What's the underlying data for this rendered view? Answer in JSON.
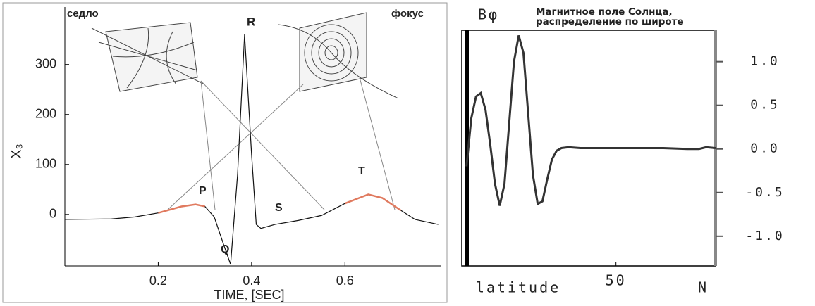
{
  "chart_data": [
    {
      "type": "line",
      "xlabel": "TIME, [SEC]",
      "ylabel": "X₃",
      "annotations": [
        "седло",
        "фокус",
        "R",
        "P",
        "Q",
        "S",
        "T"
      ],
      "x": [
        0,
        0.1,
        0.15,
        0.2,
        0.25,
        0.28,
        0.3,
        0.32,
        0.34,
        0.355,
        0.37,
        0.385,
        0.4,
        0.41,
        0.42,
        0.45,
        0.5,
        0.55,
        0.6,
        0.65,
        0.68,
        0.72,
        0.75,
        0.8
      ],
      "series": [
        {
          "color": "#111111",
          "values": [
            -10,
            -9,
            -5,
            3,
            16,
            20,
            16,
            -5,
            -60,
            -100,
            80,
            360,
            120,
            -20,
            -28,
            -20,
            -12,
            -2,
            22,
            40,
            33,
            8,
            -10,
            -20
          ]
        },
        {
          "color": "#e07a5f",
          "values": [
            null,
            null,
            null,
            3,
            16,
            20,
            16,
            null,
            null,
            null,
            null,
            null,
            null,
            null,
            null,
            null,
            null,
            null,
            22,
            40,
            33,
            8,
            null,
            null
          ]
        }
      ],
      "xlim": [
        0,
        0.805
      ],
      "ylim": [
        -103,
        415
      ],
      "xticks": [
        0.2,
        0.4,
        0.6
      ],
      "yticks": [
        0,
        100,
        200,
        300
      ]
    },
    {
      "type": "line",
      "title": "Магнитное поле Солнца, распределение по широте",
      "ylabel": "Bφ",
      "xlabel": "latitude",
      "annotations": [
        "N"
      ],
      "x": [
        -13,
        -11,
        -9,
        -7,
        -5,
        -3,
        -1,
        1,
        3,
        5,
        7,
        9,
        11,
        13,
        15,
        17,
        19,
        21,
        23,
        25,
        27,
        30,
        35,
        40,
        50,
        60,
        70,
        80,
        85,
        88,
        92
      ],
      "series": [
        {
          "color": "#333333",
          "values": [
            -0.2,
            0.35,
            0.6,
            0.64,
            0.45,
            0.05,
            -0.4,
            -0.65,
            -0.4,
            0.3,
            1.0,
            1.3,
            1.1,
            0.4,
            -0.3,
            -0.63,
            -0.6,
            -0.35,
            -0.12,
            -0.02,
            0.01,
            0.02,
            0.01,
            0.01,
            0.01,
            0.01,
            0.01,
            0,
            0,
            0.02,
            0.01
          ]
        }
      ],
      "xlim": [
        -15,
        92
      ],
      "ylim": [
        -1.34,
        1.36
      ],
      "xticks": [
        50
      ],
      "yticks": [
        {
          "value": 1,
          "label": "1.0"
        },
        {
          "value": 0.5,
          "label": "0.5"
        },
        {
          "value": 0,
          "label": "0.0"
        },
        {
          "value": -0.5,
          "label": "-0.5"
        },
        {
          "value": -1,
          "label": "-1.0"
        }
      ]
    }
  ]
}
